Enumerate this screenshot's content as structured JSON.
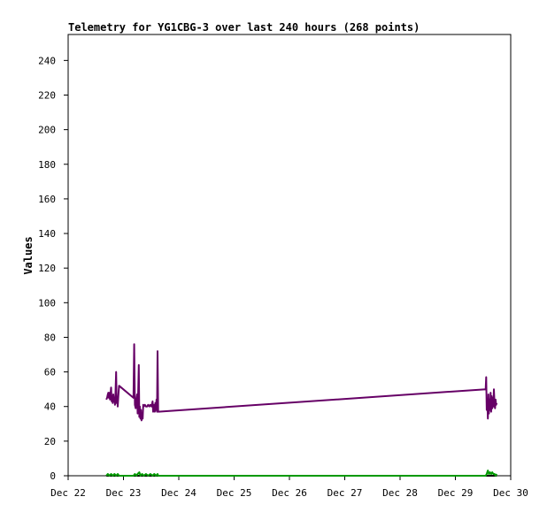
{
  "chart_data": {
    "type": "line",
    "title": "Telemetry for YG1CBG-3 over last 240 hours (268 points)",
    "xlabel": "",
    "ylabel": "Values",
    "x_ticks": [
      "Dec 22",
      "Dec 23",
      "Dec 24",
      "Dec 25",
      "Dec 26",
      "Dec 27",
      "Dec 28",
      "Dec 29",
      "Dec 30"
    ],
    "xlim_hours": [
      0,
      240
    ],
    "y_ticks": [
      0,
      20,
      40,
      60,
      80,
      100,
      120,
      140,
      160,
      180,
      200,
      220,
      240
    ],
    "ylim": [
      0,
      255
    ],
    "grid": false,
    "legend": "none",
    "series": [
      {
        "color": "#660066",
        "points": [
          [
            20.7,
            44
          ],
          [
            21.1,
            45
          ],
          [
            21.5,
            47
          ],
          [
            21.8,
            48
          ],
          [
            22.1,
            45
          ],
          [
            22.4,
            48
          ],
          [
            22.7,
            44
          ],
          [
            23.0,
            47
          ],
          [
            23.3,
            51
          ],
          [
            23.6,
            43
          ],
          [
            23.9,
            46
          ],
          [
            24.2,
            42
          ],
          [
            24.5,
            47
          ],
          [
            24.8,
            43
          ],
          [
            25.1,
            45
          ],
          [
            25.4,
            41
          ],
          [
            25.7,
            48
          ],
          [
            26.0,
            60
          ],
          [
            26.3,
            42
          ],
          [
            26.6,
            45
          ],
          [
            26.9,
            40
          ],
          [
            27.2,
            46
          ],
          [
            27.6,
            52
          ],
          [
            35.4,
            45
          ],
          [
            35.8,
            76
          ],
          [
            36.2,
            41
          ],
          [
            36.6,
            39
          ],
          [
            37.0,
            44
          ],
          [
            37.4,
            47
          ],
          [
            37.7,
            36
          ],
          [
            38.0,
            50
          ],
          [
            38.3,
            64
          ],
          [
            38.6,
            34
          ],
          [
            38.9,
            40
          ],
          [
            39.2,
            33
          ],
          [
            39.5,
            38
          ],
          [
            39.8,
            32
          ],
          [
            40.1,
            36
          ],
          [
            40.4,
            33
          ],
          [
            40.7,
            41
          ],
          [
            41.0,
            40
          ],
          [
            41.6,
            41
          ],
          [
            42.2,
            40
          ],
          [
            42.8,
            40
          ],
          [
            43.4,
            41
          ],
          [
            44.0,
            40
          ],
          [
            44.6,
            41
          ],
          [
            45.2,
            40
          ],
          [
            45.8,
            43
          ],
          [
            46.1,
            37
          ],
          [
            46.4,
            41
          ],
          [
            46.7,
            40
          ],
          [
            47.0,
            37
          ],
          [
            47.3,
            42
          ],
          [
            47.6,
            38
          ],
          [
            47.9,
            44
          ],
          [
            48.2,
            37
          ],
          [
            48.5,
            72
          ],
          [
            48.8,
            37
          ],
          [
            226.4,
            50
          ],
          [
            226.7,
            57
          ],
          [
            227.0,
            38
          ],
          [
            227.3,
            44
          ],
          [
            227.6,
            33
          ],
          [
            227.9,
            47
          ],
          [
            228.2,
            36
          ],
          [
            228.5,
            44
          ],
          [
            228.8,
            38
          ],
          [
            229.1,
            48
          ],
          [
            229.4,
            37
          ],
          [
            229.7,
            46
          ],
          [
            230.0,
            39
          ],
          [
            230.3,
            45
          ],
          [
            230.6,
            40
          ],
          [
            230.9,
            50
          ],
          [
            231.2,
            42
          ],
          [
            231.5,
            39
          ],
          [
            231.8,
            44
          ],
          [
            232.1,
            41
          ],
          [
            232.4,
            42
          ]
        ]
      },
      {
        "color": "#000000",
        "points": [
          [
            20.7,
            0
          ],
          [
            232.4,
            0
          ]
        ]
      },
      {
        "color": "#009900",
        "points": [
          [
            20.7,
            0
          ],
          [
            21.5,
            1
          ],
          [
            22.4,
            0
          ],
          [
            23.3,
            1
          ],
          [
            24.2,
            0
          ],
          [
            25.1,
            1
          ],
          [
            26.0,
            0
          ],
          [
            26.9,
            1
          ],
          [
            27.6,
            0
          ],
          [
            35.4,
            0
          ],
          [
            36.2,
            1
          ],
          [
            37.0,
            0
          ],
          [
            37.7,
            1
          ],
          [
            38.6,
            2
          ],
          [
            39.2,
            0
          ],
          [
            40.1,
            1
          ],
          [
            41.0,
            0
          ],
          [
            42.2,
            1
          ],
          [
            43.4,
            0
          ],
          [
            44.6,
            1
          ],
          [
            45.8,
            0
          ],
          [
            46.7,
            1
          ],
          [
            47.6,
            0
          ],
          [
            48.5,
            1
          ],
          [
            48.8,
            0
          ],
          [
            226.4,
            0
          ],
          [
            227.0,
            1
          ],
          [
            227.6,
            3
          ],
          [
            228.2,
            1
          ],
          [
            228.8,
            2
          ],
          [
            229.4,
            1
          ],
          [
            230.0,
            2
          ],
          [
            230.6,
            1
          ],
          [
            231.2,
            1
          ],
          [
            231.8,
            0
          ],
          [
            232.4,
            1
          ]
        ]
      }
    ]
  }
}
